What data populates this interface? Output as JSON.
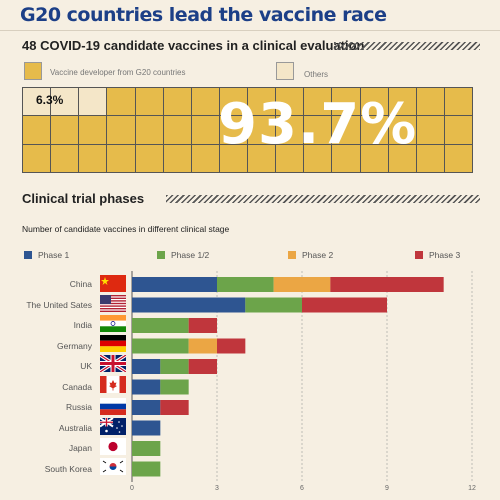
{
  "header": {
    "title": "G20 countries lead the vaccine race"
  },
  "share_section": {
    "heading": "48 COVID-19 candidate vaccines in a clinical evaluation",
    "legend": [
      {
        "label": "Vaccine developer from G20 countries",
        "color": "#e6bb4b"
      },
      {
        "label": "Others",
        "color": "#f4e6c8"
      }
    ],
    "others_pct": "6.3%",
    "g20_pct": "93.7%",
    "g20_color": "#e6bb4b",
    "others_color": "#f4e6c8"
  },
  "trials_section": {
    "heading": "Clinical trial phases",
    "subheading": "Number of candidate vaccines in different clinical stage"
  },
  "chart_data": {
    "type": "bar",
    "orientation": "horizontal",
    "stacked": true,
    "categories": [
      "China",
      "The United Sates",
      "India",
      "Germany",
      "UK",
      "Canada",
      "Russia",
      "Australia",
      "Japan",
      "South Korea"
    ],
    "series": [
      {
        "name": "Phase 1",
        "color": "#2e5591",
        "values": [
          3,
          4,
          0,
          0,
          1,
          1,
          1,
          1,
          0,
          0
        ]
      },
      {
        "name": "Phase 1/2",
        "color": "#6ca44a",
        "values": [
          2,
          2,
          2,
          2,
          1,
          1,
          0,
          0,
          1,
          1
        ]
      },
      {
        "name": "Phase 2",
        "color": "#eba644",
        "values": [
          2,
          0,
          0,
          1,
          0,
          0,
          0,
          0,
          0,
          0
        ]
      },
      {
        "name": "Phase 3",
        "color": "#c0363c",
        "values": [
          4,
          3,
          1,
          1,
          1,
          0,
          1,
          0,
          0,
          0
        ]
      }
    ],
    "xticks": [
      0,
      3,
      6,
      9,
      12
    ],
    "xlim": [
      0,
      12
    ],
    "xlabel": "",
    "ylabel": "",
    "legend_position": "top",
    "grid": true
  },
  "flags": [
    "china-flag-icon",
    "usa-flag-icon",
    "india-flag-icon",
    "germany-flag-icon",
    "uk-flag-icon",
    "canada-flag-icon",
    "russia-flag-icon",
    "australia-flag-icon",
    "japan-flag-icon",
    "south-korea-flag-icon"
  ]
}
